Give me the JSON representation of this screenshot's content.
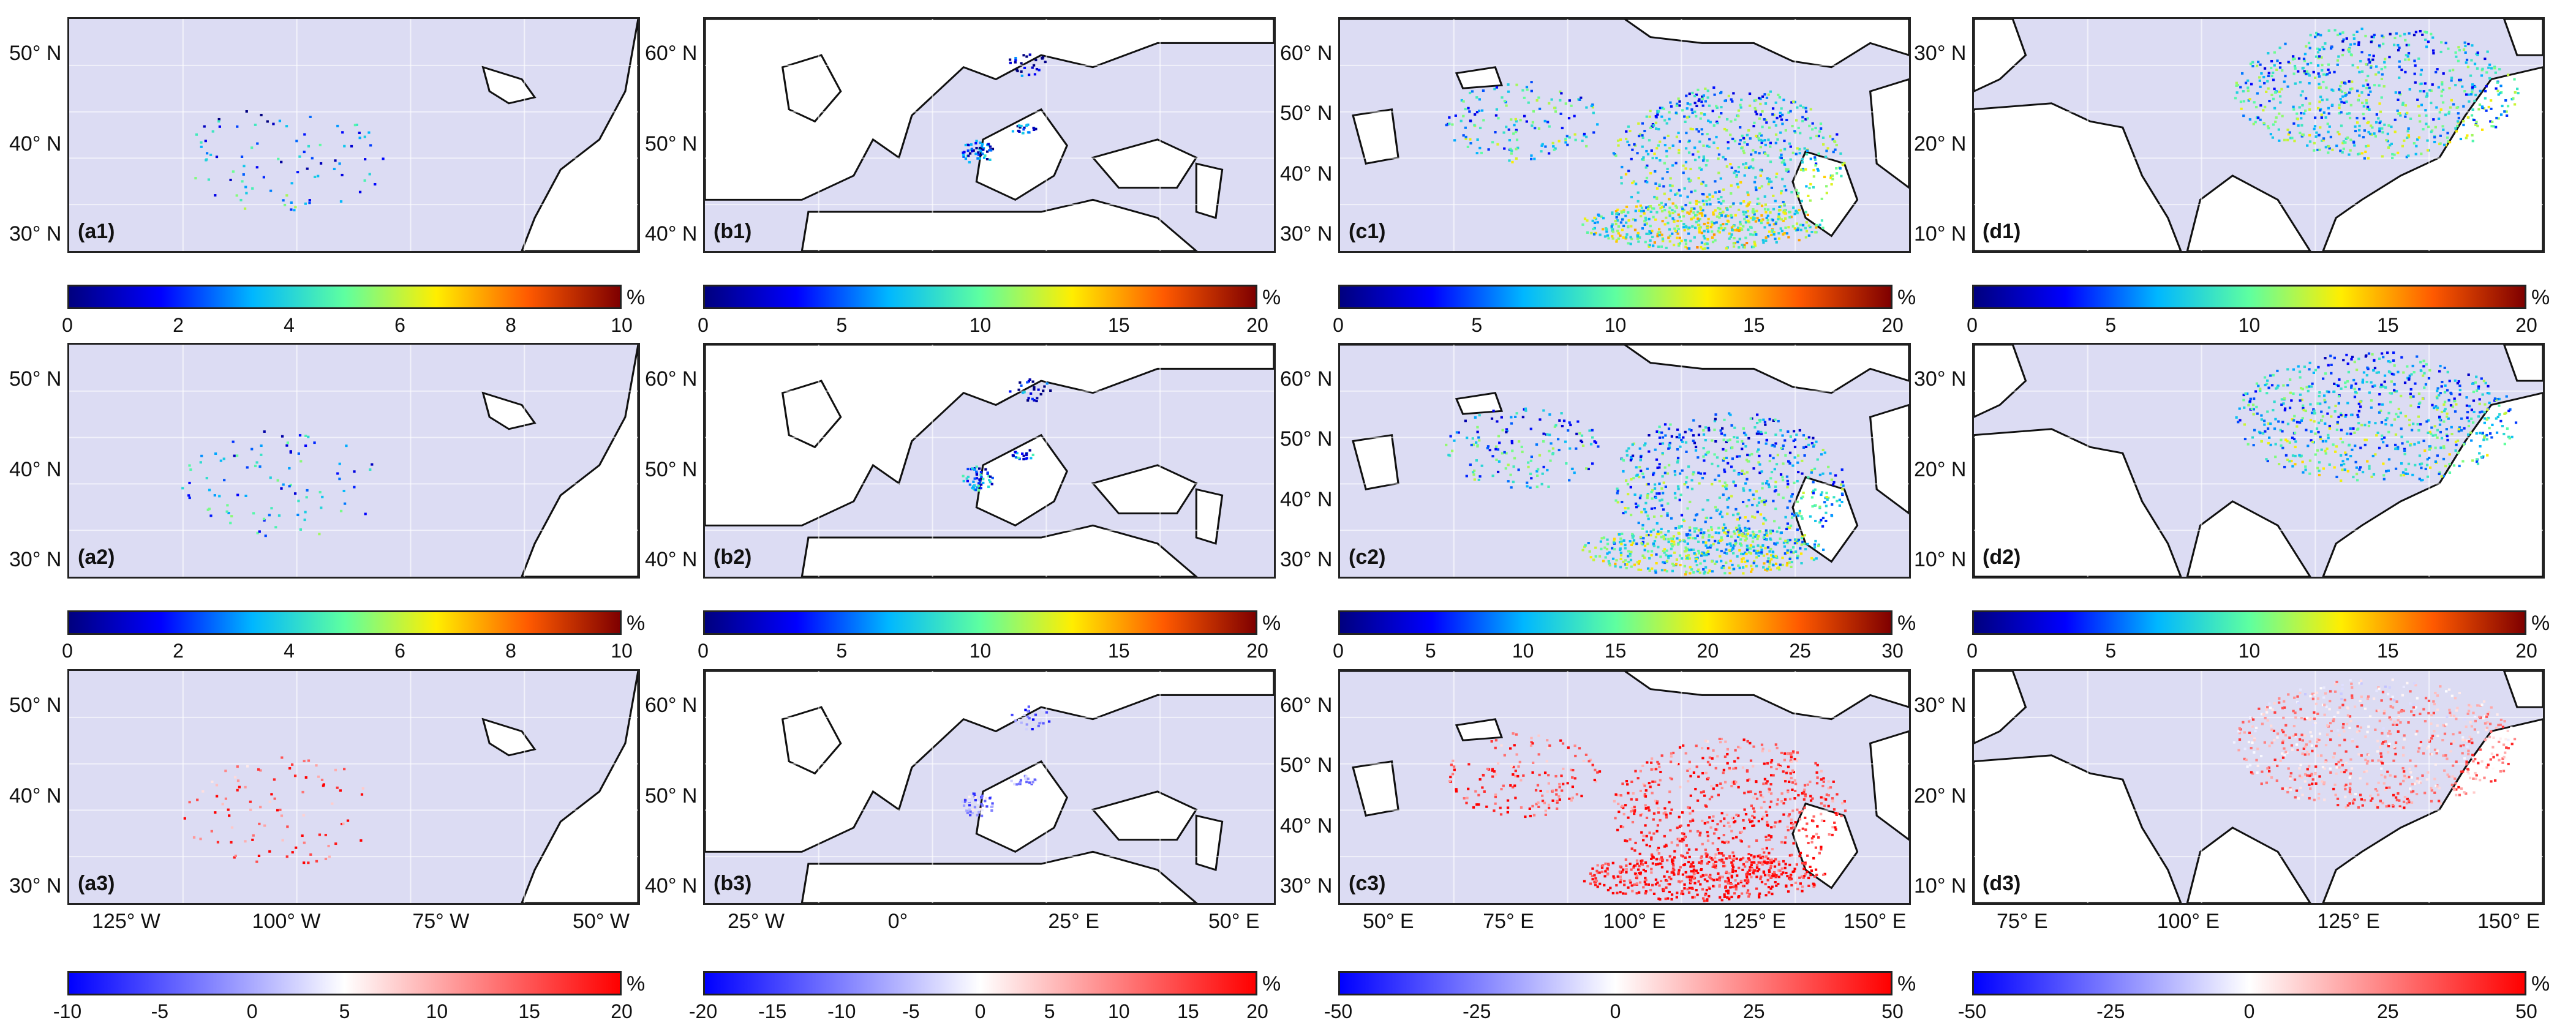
{
  "colors": {
    "ocean": "#dcdcf3",
    "jet": [
      "#00007f",
      "#0000ff",
      "#00b7ff",
      "#5effa0",
      "#ffee00",
      "#ff5a00",
      "#7f0000"
    ],
    "diverging": [
      "#0000ff",
      "#ffffff",
      "#ff0000"
    ]
  },
  "panels": [
    {
      "id": "a1",
      "label": "(a1)",
      "lat": [
        "50° N",
        "40° N",
        "30° N"
      ],
      "cbar": {
        "type": "jet",
        "ticks": [
          "0",
          "2",
          "4",
          "6",
          "8",
          "10"
        ],
        "unit": "%"
      }
    },
    {
      "id": "b1",
      "label": "(b1)",
      "lat": [
        "60° N",
        "50° N",
        "40° N"
      ],
      "cbar": {
        "type": "jet",
        "ticks": [
          "0",
          "5",
          "10",
          "15",
          "20"
        ],
        "unit": "%"
      }
    },
    {
      "id": "c1",
      "label": "(c1)",
      "lat": [
        "60° N",
        "50° N",
        "40° N",
        "30° N"
      ],
      "cbar": {
        "type": "jet",
        "ticks": [
          "0",
          "5",
          "10",
          "15",
          "20"
        ],
        "unit": "%"
      }
    },
    {
      "id": "d1",
      "label": "(d1)",
      "lat": [
        "30° N",
        "20° N",
        "10° N"
      ],
      "cbar": {
        "type": "jet",
        "ticks": [
          "0",
          "5",
          "10",
          "15",
          "20"
        ],
        "unit": "%"
      }
    },
    {
      "id": "a2",
      "label": "(a2)",
      "lat": [
        "50° N",
        "40° N",
        "30° N"
      ],
      "cbar": {
        "type": "jet",
        "ticks": [
          "0",
          "2",
          "4",
          "6",
          "8",
          "10"
        ],
        "unit": "%"
      }
    },
    {
      "id": "b2",
      "label": "(b2)",
      "lat": [
        "60° N",
        "50° N",
        "40° N"
      ],
      "cbar": {
        "type": "jet",
        "ticks": [
          "0",
          "5",
          "10",
          "15",
          "20"
        ],
        "unit": "%"
      }
    },
    {
      "id": "c2",
      "label": "(c2)",
      "lat": [
        "60° N",
        "50° N",
        "40° N",
        "30° N"
      ],
      "cbar": {
        "type": "jet",
        "ticks": [
          "0",
          "5",
          "10",
          "15",
          "20",
          "25",
          "30"
        ],
        "unit": "%"
      }
    },
    {
      "id": "d2",
      "label": "(d2)",
      "lat": [
        "30° N",
        "20° N",
        "10° N"
      ],
      "cbar": {
        "type": "jet",
        "ticks": [
          "0",
          "5",
          "10",
          "15",
          "20"
        ],
        "unit": "%"
      }
    },
    {
      "id": "a3",
      "label": "(a3)",
      "lat": [
        "50° N",
        "40° N",
        "30° N"
      ],
      "lon": [
        "125° W",
        "100° W",
        "75° W",
        "50° W"
      ],
      "cbar": {
        "type": "div",
        "ticks": [
          "-10",
          "-5",
          "0",
          "5",
          "10",
          "15",
          "20"
        ],
        "unit": "%"
      }
    },
    {
      "id": "b3",
      "label": "(b3)",
      "lat": [
        "60° N",
        "50° N",
        "40° N"
      ],
      "lon": [
        "25° W",
        "0°",
        "25° E",
        "50° E"
      ],
      "cbar": {
        "type": "div",
        "ticks": [
          "-20",
          "-15",
          "-10",
          "-5",
          "0",
          "5",
          "10",
          "15",
          "20"
        ],
        "unit": "%"
      }
    },
    {
      "id": "c3",
      "label": "(c3)",
      "lat": [
        "60° N",
        "50° N",
        "40° N",
        "30° N"
      ],
      "lon": [
        "50° E",
        "75° E",
        "100° E",
        "125° E",
        "150° E"
      ],
      "cbar": {
        "type": "div",
        "ticks": [
          "-50",
          "-25",
          "0",
          "25",
          "50"
        ],
        "unit": "%"
      }
    },
    {
      "id": "d3",
      "label": "(d3)",
      "lat": [
        "30° N",
        "20° N",
        "10° N"
      ],
      "lon": [
        "75° E",
        "100° E",
        "125° E",
        "150° E"
      ],
      "cbar": {
        "type": "div",
        "ticks": [
          "-50",
          "-25",
          "0",
          "25",
          "50"
        ],
        "unit": "%"
      }
    }
  ]
}
